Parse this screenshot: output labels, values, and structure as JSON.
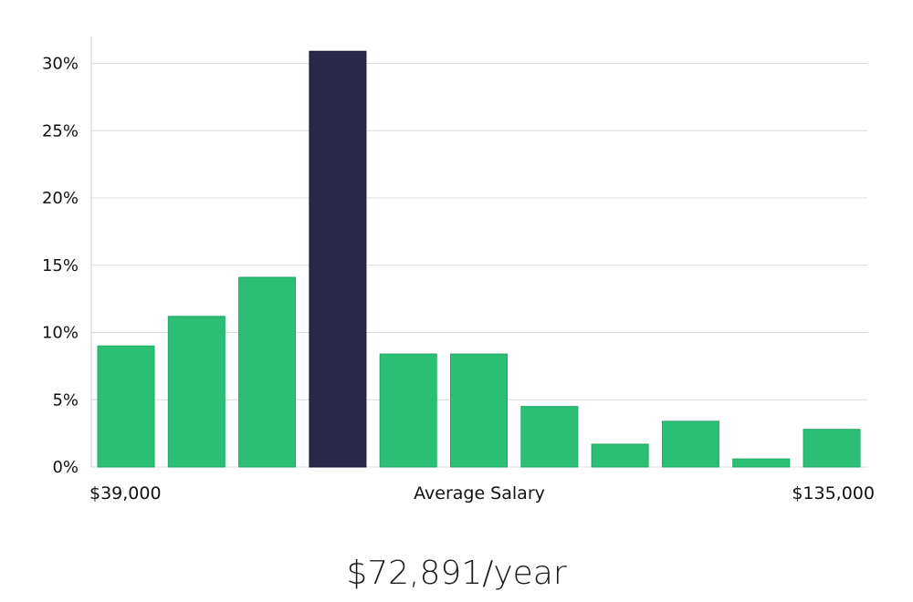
{
  "chart_data": {
    "type": "bar",
    "values": [
      9.0,
      11.2,
      14.1,
      30.9,
      8.4,
      8.4,
      4.5,
      1.7,
      3.4,
      0.6,
      2.8
    ],
    "highlight_index": 3,
    "ylim": [
      0,
      32
    ],
    "yticks": [
      0,
      5,
      10,
      15,
      20,
      25,
      30
    ],
    "ytick_labels": [
      "0%",
      "5%",
      "10%",
      "15%",
      "20%",
      "25%",
      "30%"
    ],
    "x_min_label": "$39,000",
    "x_center_label": "Average Salary",
    "x_max_label": "$135,000",
    "grid": true,
    "colors": {
      "bar": "#2bbf76",
      "highlight": "#2a2748",
      "grid": "#dcdcdc",
      "axis": "#cfcfcf"
    }
  },
  "summary": {
    "salary": "$72,891/year"
  }
}
